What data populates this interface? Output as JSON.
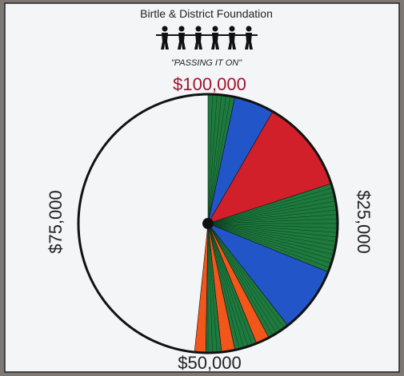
{
  "header": {
    "title": "Birtle & District Foundation",
    "slogan": "\"PASSING IT ON\""
  },
  "dial": {
    "labels": {
      "top": "$100,000",
      "right": "$25,000",
      "bottom": "$50,000",
      "left": "$75,000"
    }
  }
}
